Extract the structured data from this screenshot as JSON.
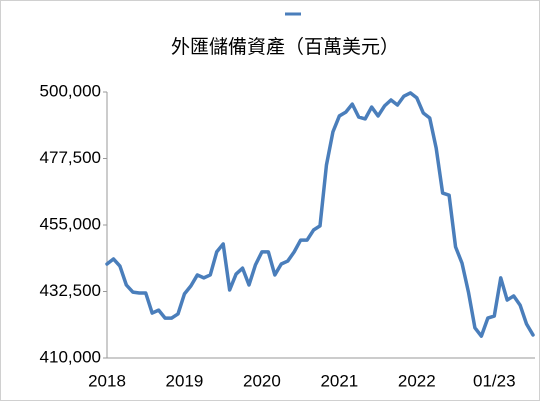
{
  "chart_data": {
    "type": "line",
    "title": "外匯儲備資產（百萬美元）",
    "categories": [
      "2018",
      null,
      null,
      null,
      null,
      null,
      null,
      null,
      null,
      null,
      null,
      null,
      "2019",
      null,
      null,
      null,
      null,
      null,
      null,
      null,
      null,
      null,
      null,
      null,
      "2020",
      null,
      null,
      null,
      null,
      null,
      null,
      null,
      null,
      null,
      null,
      null,
      "2021",
      null,
      null,
      null,
      null,
      null,
      null,
      null,
      null,
      null,
      null,
      null,
      "2022",
      null,
      null,
      null,
      null,
      null,
      null,
      null,
      null,
      null,
      null,
      null,
      "01/23",
      null,
      null,
      null,
      null,
      null,
      null
    ],
    "series": [
      {
        "color": "#4a7ebb",
        "values": [
          441800,
          443500,
          441100,
          434700,
          432300,
          432000,
          432000,
          425200,
          426200,
          423500,
          423500,
          424900,
          431700,
          434400,
          438100,
          437100,
          438100,
          445900,
          448600,
          433000,
          438400,
          440400,
          434700,
          441500,
          445900,
          445900,
          438100,
          441800,
          442800,
          445900,
          449900,
          449900,
          453300,
          454700,
          475300,
          486500,
          491900,
          493200,
          495900,
          491500,
          490900,
          494900,
          491900,
          495300,
          497300,
          495600,
          498600,
          499700,
          498000,
          492900,
          491200,
          481000,
          465800,
          465100,
          447600,
          442100,
          432300,
          420200,
          417400,
          423500,
          424200,
          437100,
          429600,
          431000,
          427900,
          421500,
          417800
        ]
      }
    ],
    "ylim": [
      410000,
      500000
    ],
    "yticks": [
      {
        "value": 410000,
        "label": "410,000"
      },
      {
        "value": 432500,
        "label": "432,500"
      },
      {
        "value": 455000,
        "label": "455,000"
      },
      {
        "value": 477500,
        "label": "477,500"
      },
      {
        "value": 500000,
        "label": "500,000"
      }
    ]
  }
}
